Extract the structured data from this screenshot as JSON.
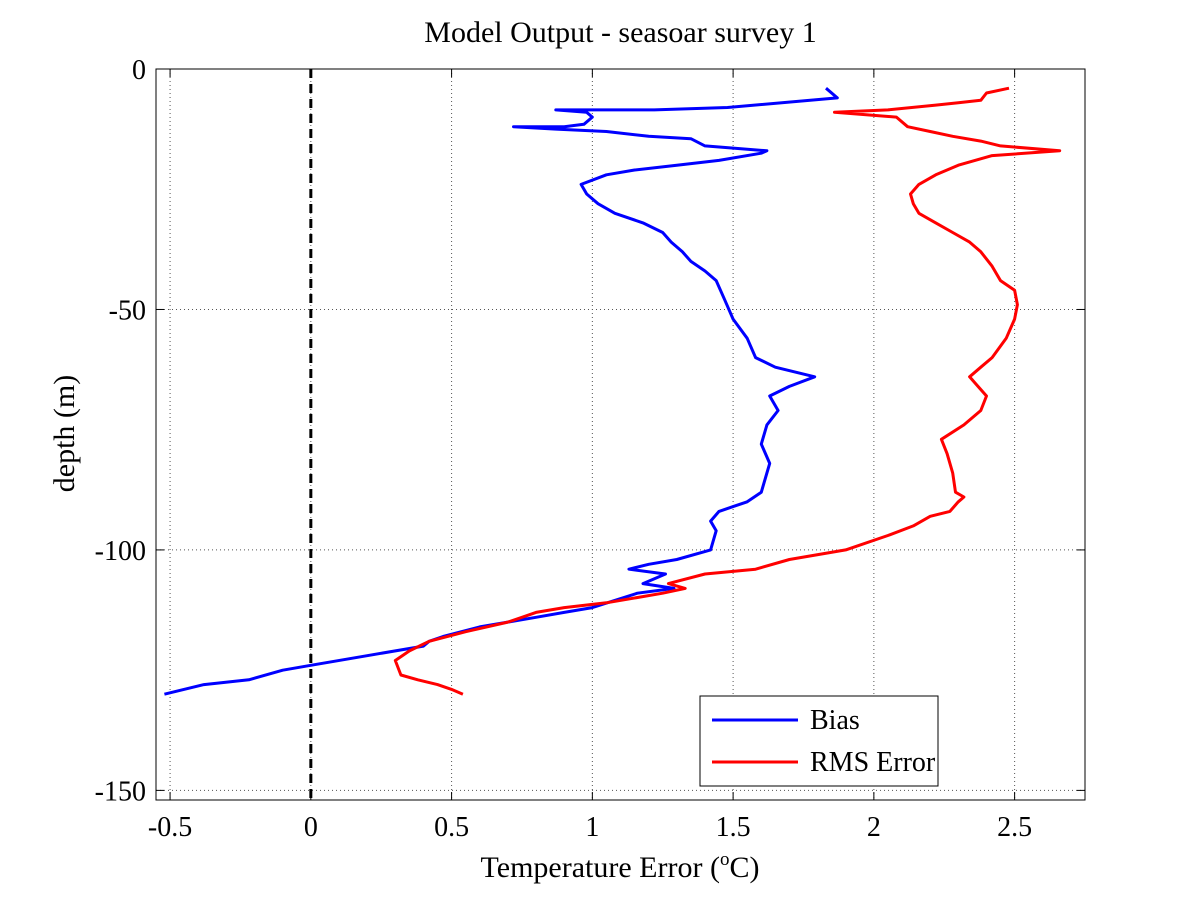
{
  "chart_data": {
    "type": "line",
    "title": "Model Output - seasoar survey 1",
    "xlabel_main": "Temperature Error  (",
    "xlabel_sup": "o",
    "xlabel_unit": "C)",
    "ylabel": "depth (m)",
    "xlim": [
      -0.55,
      2.75
    ],
    "ylim": [
      -152,
      0
    ],
    "xticks": [
      -0.5,
      0,
      0.5,
      1,
      1.5,
      2,
      2.5
    ],
    "xtick_labels": [
      "-0.5",
      "0",
      "0.5",
      "1",
      "1.5",
      "2",
      "2.5"
    ],
    "yticks": [
      0,
      -50,
      -100,
      -150
    ],
    "ytick_labels": [
      "0",
      "-50",
      "-100",
      "-150"
    ],
    "grid": true,
    "legend_placement": "bottom-right",
    "reference_line": {
      "x": 0,
      "style": "dashed",
      "color": "#000000"
    },
    "series": [
      {
        "name": "Bias",
        "color": "#0000ff",
        "points": [
          [
            1.83,
            -4
          ],
          [
            1.87,
            -6
          ],
          [
            1.48,
            -8
          ],
          [
            1.22,
            -8.5
          ],
          [
            0.87,
            -8.5
          ],
          [
            0.98,
            -9
          ],
          [
            1.0,
            -10
          ],
          [
            0.97,
            -11.5
          ],
          [
            0.9,
            -12
          ],
          [
            0.72,
            -12
          ],
          [
            0.87,
            -12.5
          ],
          [
            1.05,
            -13
          ],
          [
            1.2,
            -14
          ],
          [
            1.35,
            -14.5
          ],
          [
            1.4,
            -16
          ],
          [
            1.62,
            -17
          ],
          [
            1.6,
            -17.5
          ],
          [
            1.45,
            -19
          ],
          [
            1.3,
            -20
          ],
          [
            1.15,
            -21
          ],
          [
            1.05,
            -22
          ],
          [
            0.96,
            -24
          ],
          [
            0.98,
            -26
          ],
          [
            1.02,
            -28
          ],
          [
            1.08,
            -30
          ],
          [
            1.18,
            -32
          ],
          [
            1.25,
            -34
          ],
          [
            1.28,
            -36
          ],
          [
            1.32,
            -38
          ],
          [
            1.35,
            -40
          ],
          [
            1.4,
            -42
          ],
          [
            1.44,
            -44
          ],
          [
            1.47,
            -48
          ],
          [
            1.5,
            -52
          ],
          [
            1.55,
            -56
          ],
          [
            1.58,
            -60
          ],
          [
            1.65,
            -62
          ],
          [
            1.79,
            -64
          ],
          [
            1.7,
            -66
          ],
          [
            1.63,
            -68
          ],
          [
            1.66,
            -71
          ],
          [
            1.62,
            -74
          ],
          [
            1.6,
            -78
          ],
          [
            1.63,
            -82
          ],
          [
            1.61,
            -86
          ],
          [
            1.6,
            -88
          ],
          [
            1.55,
            -90
          ],
          [
            1.5,
            -91
          ],
          [
            1.45,
            -92
          ],
          [
            1.42,
            -94
          ],
          [
            1.44,
            -96
          ],
          [
            1.42,
            -100
          ],
          [
            1.3,
            -102
          ],
          [
            1.2,
            -103
          ],
          [
            1.13,
            -104
          ],
          [
            1.26,
            -105
          ],
          [
            1.18,
            -107
          ],
          [
            1.29,
            -108
          ],
          [
            1.16,
            -109
          ],
          [
            1.0,
            -112
          ],
          [
            0.9,
            -113
          ],
          [
            0.8,
            -114
          ],
          [
            0.6,
            -116
          ],
          [
            0.47,
            -118
          ],
          [
            0.42,
            -119
          ],
          [
            0.4,
            -120
          ],
          [
            0.2,
            -122
          ],
          [
            0.0,
            -124
          ],
          [
            -0.1,
            -125
          ],
          [
            -0.22,
            -127
          ],
          [
            -0.38,
            -128
          ],
          [
            -0.52,
            -130
          ]
        ]
      },
      {
        "name": "RMS Error",
        "color": "#ff0000",
        "points": [
          [
            2.48,
            -4
          ],
          [
            2.4,
            -5
          ],
          [
            2.38,
            -6.5
          ],
          [
            2.3,
            -7
          ],
          [
            2.22,
            -7.5
          ],
          [
            2.05,
            -8.5
          ],
          [
            1.86,
            -9
          ],
          [
            2.08,
            -10
          ],
          [
            2.12,
            -12
          ],
          [
            2.2,
            -13
          ],
          [
            2.28,
            -14
          ],
          [
            2.38,
            -15
          ],
          [
            2.45,
            -16
          ],
          [
            2.66,
            -17
          ],
          [
            2.42,
            -18
          ],
          [
            2.3,
            -20
          ],
          [
            2.22,
            -22
          ],
          [
            2.16,
            -24
          ],
          [
            2.13,
            -26
          ],
          [
            2.14,
            -28
          ],
          [
            2.16,
            -30
          ],
          [
            2.22,
            -32
          ],
          [
            2.28,
            -34
          ],
          [
            2.34,
            -36
          ],
          [
            2.38,
            -38
          ],
          [
            2.42,
            -41
          ],
          [
            2.45,
            -44
          ],
          [
            2.5,
            -46
          ],
          [
            2.51,
            -49
          ],
          [
            2.5,
            -52
          ],
          [
            2.47,
            -56
          ],
          [
            2.42,
            -60
          ],
          [
            2.38,
            -62
          ],
          [
            2.34,
            -64
          ],
          [
            2.37,
            -66
          ],
          [
            2.4,
            -68
          ],
          [
            2.38,
            -71
          ],
          [
            2.32,
            -74
          ],
          [
            2.24,
            -77
          ],
          [
            2.26,
            -80
          ],
          [
            2.28,
            -84
          ],
          [
            2.29,
            -88
          ],
          [
            2.32,
            -89
          ],
          [
            2.3,
            -90
          ],
          [
            2.27,
            -92
          ],
          [
            2.2,
            -93
          ],
          [
            2.14,
            -95
          ],
          [
            2.05,
            -97
          ],
          [
            1.9,
            -100
          ],
          [
            1.7,
            -102
          ],
          [
            1.58,
            -104
          ],
          [
            1.4,
            -105
          ],
          [
            1.27,
            -107
          ],
          [
            1.33,
            -108
          ],
          [
            1.25,
            -109
          ],
          [
            1.05,
            -111
          ],
          [
            0.9,
            -112
          ],
          [
            0.8,
            -113
          ],
          [
            0.75,
            -114
          ],
          [
            0.7,
            -115
          ],
          [
            0.55,
            -117
          ],
          [
            0.42,
            -119
          ],
          [
            0.35,
            -121
          ],
          [
            0.3,
            -123
          ],
          [
            0.32,
            -126
          ],
          [
            0.38,
            -127
          ],
          [
            0.45,
            -128
          ],
          [
            0.5,
            -129
          ],
          [
            0.54,
            -130
          ]
        ]
      }
    ]
  }
}
